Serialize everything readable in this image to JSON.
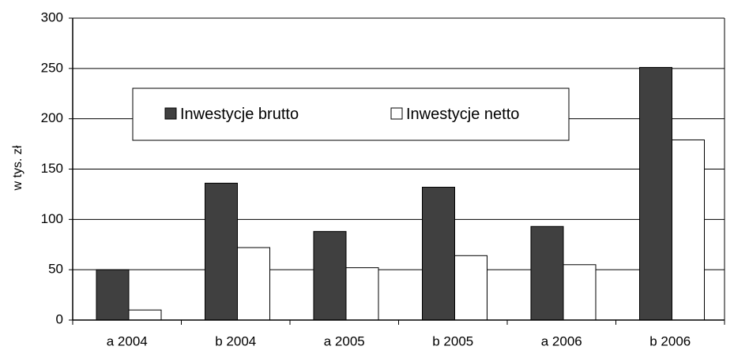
{
  "chart_data": {
    "type": "bar",
    "categories": [
      "a 2004",
      "b 2004",
      "a 2005",
      "b 2005",
      "a 2006",
      "b 2006"
    ],
    "series": [
      {
        "name": "Inwestycje brutto",
        "values": [
          50,
          136,
          88,
          132,
          93,
          251
        ],
        "color": "#404040"
      },
      {
        "name": "Inwestycje netto",
        "values": [
          10,
          72,
          52,
          64,
          55,
          179
        ],
        "color": "#ffffff"
      }
    ],
    "title": "",
    "xlabel": "",
    "ylabel": "w tys. zł",
    "ylim": [
      0,
      300
    ],
    "yticks": [
      "0",
      "50",
      "100",
      "150",
      "200",
      "250",
      "300"
    ],
    "grid": true,
    "legend_position": "upper-left inside plot"
  }
}
